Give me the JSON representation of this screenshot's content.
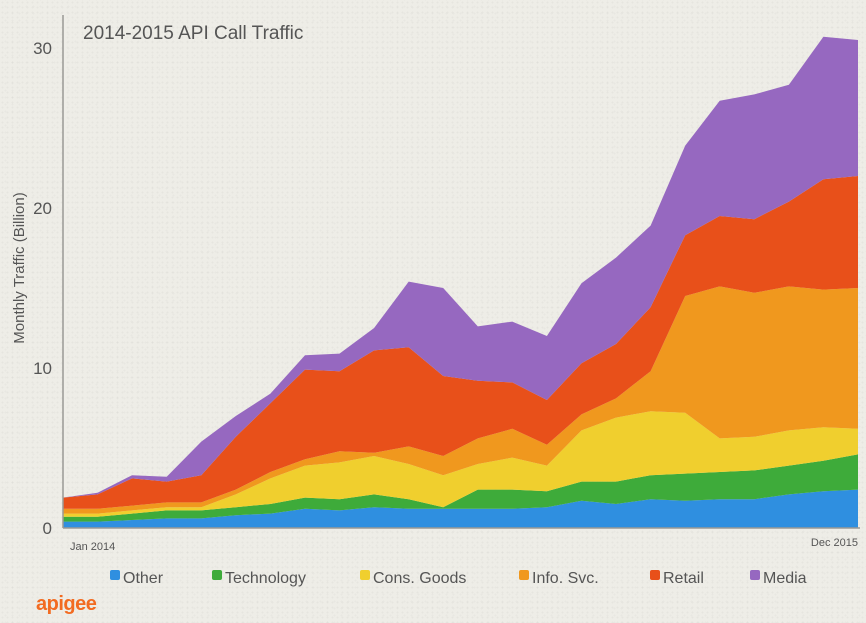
{
  "chart_data": {
    "type": "area",
    "stacked": true,
    "title": "2014-2015 API Call Traffic",
    "ylabel": "Monthly Traffic (Billion)",
    "xlabel": "",
    "x_tick_labels": [
      "Jan 2014",
      "Dec 2015"
    ],
    "yticks": [
      0,
      10,
      20,
      30
    ],
    "ylim": [
      0,
      31
    ],
    "x": [
      "Jan 2014",
      "Feb 2014",
      "Mar 2014",
      "Apr 2014",
      "May 2014",
      "Jun 2014",
      "Jul 2014",
      "Aug 2014",
      "Sep 2014",
      "Oct 2014",
      "Nov 2014",
      "Dec 2014",
      "Jan 2015",
      "Feb 2015",
      "Mar 2015",
      "Apr 2015",
      "May 2015",
      "Jun 2015",
      "Jul 2015",
      "Aug 2015",
      "Sep 2015",
      "Oct 2015",
      "Nov 2015",
      "Dec 2015"
    ],
    "series": [
      {
        "name": "Other",
        "color": "#2f8fe0",
        "values": [
          0.4,
          0.4,
          0.5,
          0.6,
          0.6,
          0.8,
          0.9,
          1.2,
          1.1,
          1.3,
          1.2,
          1.2,
          1.2,
          1.2,
          1.3,
          1.7,
          1.5,
          1.8,
          1.7,
          1.8,
          1.8,
          2.1,
          2.3,
          2.4
        ]
      },
      {
        "name": "Technology",
        "color": "#3eab3a",
        "values": [
          0.3,
          0.3,
          0.4,
          0.5,
          0.5,
          0.5,
          0.6,
          0.7,
          0.7,
          0.8,
          0.6,
          0.1,
          1.2,
          1.2,
          1.0,
          1.2,
          1.4,
          1.5,
          1.7,
          1.7,
          1.8,
          1.8,
          1.9,
          2.2
        ]
      },
      {
        "name": "Cons. Goods",
        "color": "#f0cf2e",
        "values": [
          0.2,
          0.2,
          0.2,
          0.2,
          0.2,
          0.8,
          1.6,
          2.0,
          2.3,
          2.4,
          2.2,
          2.0,
          1.6,
          2.0,
          1.6,
          3.2,
          4.0,
          4.0,
          3.8,
          2.1,
          2.1,
          2.2,
          2.1,
          1.6
        ]
      },
      {
        "name": "Info. Svc.",
        "color": "#f0981e",
        "values": [
          0.3,
          0.3,
          0.3,
          0.3,
          0.3,
          0.3,
          0.4,
          0.4,
          0.7,
          0.2,
          1.1,
          1.2,
          1.6,
          1.8,
          1.3,
          1.0,
          1.2,
          2.5,
          7.3,
          9.5,
          9.0,
          9.0,
          8.6,
          8.8
        ]
      },
      {
        "name": "Retail",
        "color": "#e8501a",
        "values": [
          0.7,
          0.9,
          1.7,
          1.3,
          1.7,
          3.3,
          4.3,
          5.6,
          5.0,
          6.4,
          6.2,
          5.0,
          3.6,
          2.9,
          2.8,
          3.2,
          3.4,
          4.0,
          3.8,
          4.4,
          4.6,
          5.3,
          6.9,
          7.0
        ]
      },
      {
        "name": "Media",
        "color": "#9668c0",
        "values": [
          0.0,
          0.1,
          0.2,
          0.3,
          2.1,
          1.3,
          0.6,
          0.9,
          1.1,
          1.4,
          4.1,
          5.5,
          3.4,
          3.8,
          4.0,
          5.0,
          5.4,
          5.1,
          5.6,
          7.2,
          7.8,
          7.3,
          8.9,
          8.5
        ]
      }
    ],
    "legend_position": "bottom",
    "grid": false
  },
  "branding": {
    "logo_text": "apigee"
  }
}
